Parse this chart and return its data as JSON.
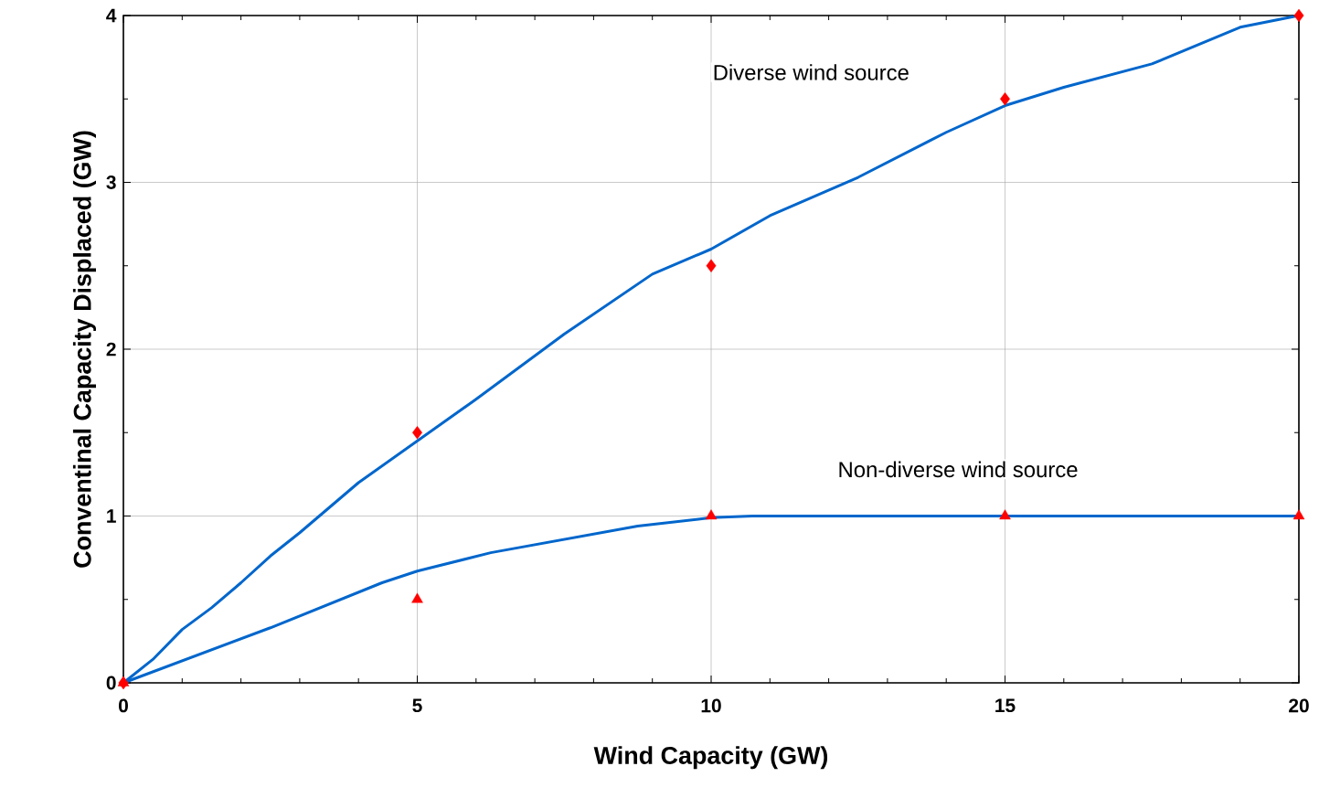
{
  "chart_data": {
    "type": "line",
    "xlabel": "Wind Capacity (GW)",
    "ylabel": "Conventinal Capacity Displaced (GW)",
    "series": [
      {
        "color": "#0066cc",
        "marker": "none",
        "x": [
          0,
          0.5,
          1,
          1.5,
          2,
          2.5,
          3,
          3.5,
          4,
          5,
          6,
          7.5,
          9,
          10,
          11,
          12.5,
          14,
          15,
          16,
          17.5,
          19,
          20
        ],
        "values": [
          0,
          0.14,
          0.32,
          0.45,
          0.6,
          0.76,
          0.9,
          1.05,
          1.2,
          1.45,
          1.7,
          2.09,
          2.45,
          2.6,
          2.8,
          3.03,
          3.3,
          3.46,
          3.57,
          3.71,
          3.93,
          4.0
        ]
      },
      {
        "color": "#0066cc",
        "marker": "none",
        "x": [
          0,
          2.5,
          4.4,
          5,
          6.25,
          8.75,
          10,
          10.7,
          20
        ],
        "values": [
          0,
          0.33,
          0.6,
          0.67,
          0.78,
          0.94,
          0.99,
          1.0,
          1.0
        ]
      },
      {
        "type": "scatter",
        "color": "#ff0000",
        "marker": "diamond",
        "x": [
          0,
          5,
          10,
          15,
          20
        ],
        "values": [
          0,
          1.5,
          2.5,
          3.5,
          4
        ]
      },
      {
        "type": "scatter",
        "color": "#ff0000",
        "marker": "triangle",
        "x": [
          0,
          5,
          10,
          15,
          20
        ],
        "values": [
          0,
          0.5,
          1,
          1,
          1
        ]
      }
    ],
    "xlim": [
      0,
      20
    ],
    "ylim": [
      0,
      4
    ],
    "xticks": [
      0,
      {
        "value": 1,
        "label": null
      },
      {
        "value": 2,
        "label": null
      },
      {
        "value": 3,
        "label": null
      },
      {
        "value": 4,
        "label": null
      },
      5,
      {
        "value": 6,
        "label": null
      },
      {
        "value": 7,
        "label": null
      },
      {
        "value": 8,
        "label": null
      },
      {
        "value": 9,
        "label": null
      },
      10,
      {
        "value": 11,
        "label": null
      },
      {
        "value": 12,
        "label": null
      },
      {
        "value": 13,
        "label": null
      },
      {
        "value": 14,
        "label": null
      },
      15,
      {
        "value": 16,
        "label": null
      },
      {
        "value": 17,
        "label": null
      },
      {
        "value": 18,
        "label": null
      },
      {
        "value": 19,
        "label": null
      },
      20
    ],
    "yticks": [
      0,
      {
        "value": 0.5,
        "label": null
      },
      1,
      {
        "value": 1.5,
        "label": null
      },
      2,
      {
        "value": 2.5,
        "label": null
      },
      3,
      {
        "value": 3.5,
        "label": null
      },
      4
    ],
    "grid": true,
    "annotations": [
      "Diverse wind source",
      "Non-diverse wind source"
    ]
  }
}
